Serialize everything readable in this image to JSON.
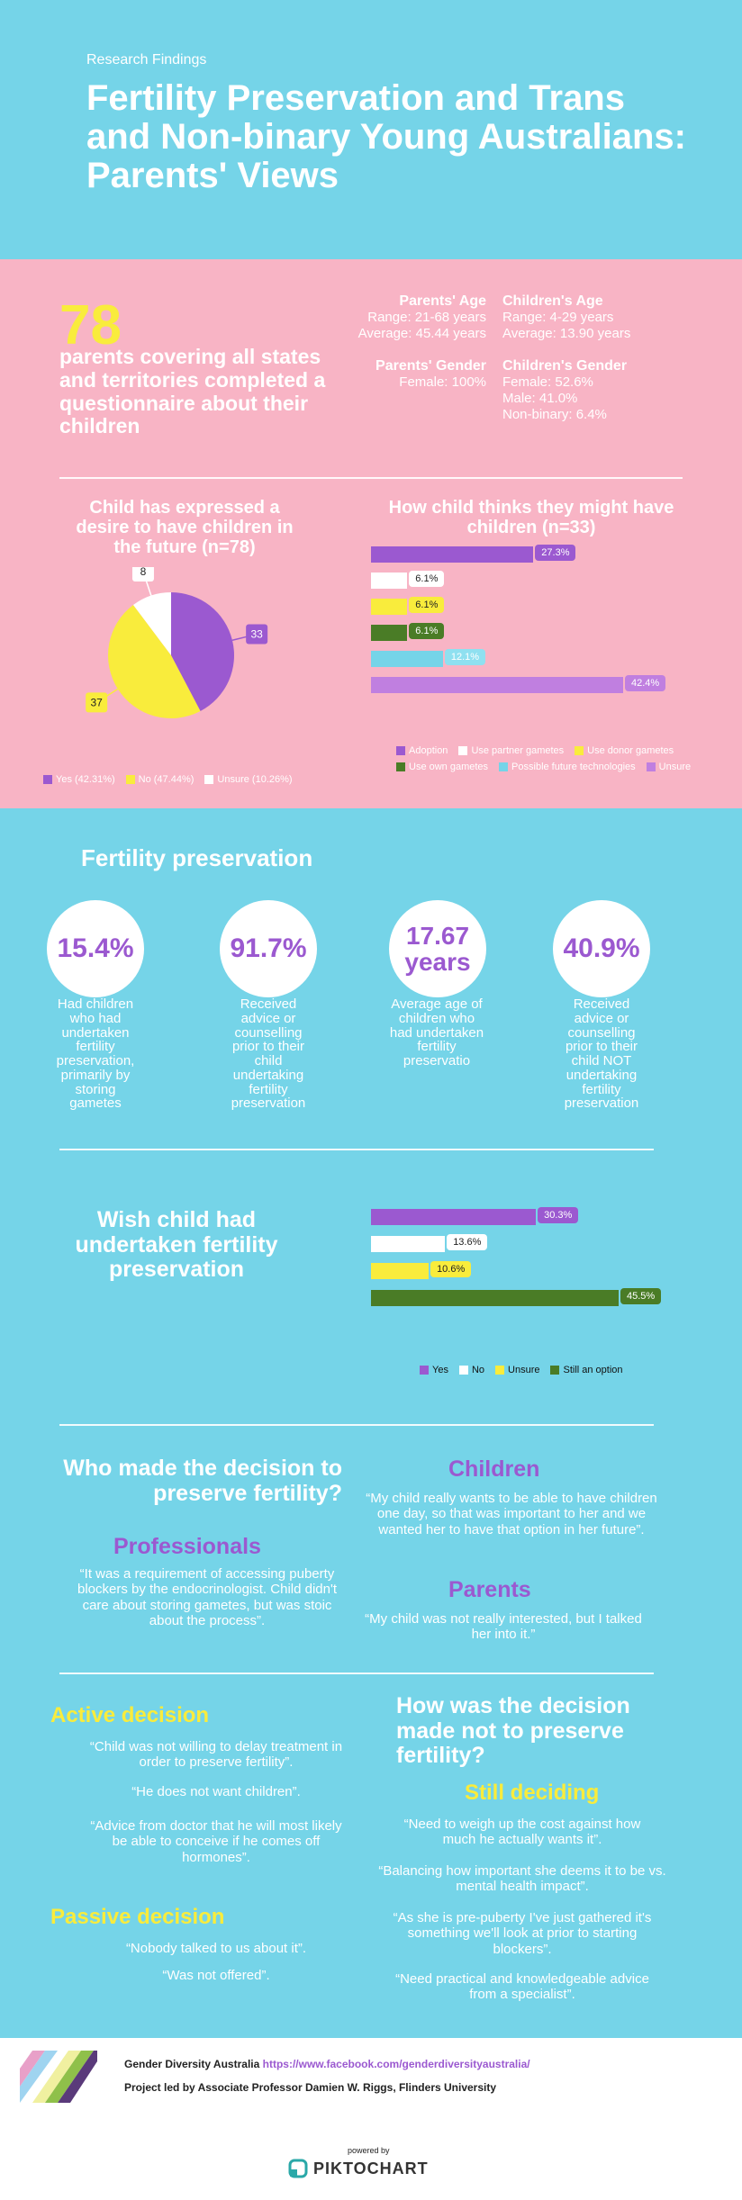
{
  "header": {
    "kicker": "Research Findings",
    "title": "Fertility Preservation and Trans and Non-binary Young Australians: Parents' Views"
  },
  "overview": {
    "count": "78",
    "count_text": "parents covering all states and territories completed a questionnaire about their children",
    "parents_age": {
      "heading": "Parents' Age",
      "range": "Range: 21-68 years",
      "average": "Average: 45.44 years"
    },
    "children_age": {
      "heading": "Children's Age",
      "range": "Range: 4-29 years",
      "average": "Average: 13.90 years"
    },
    "parents_gender": {
      "heading": "Parents' Gender",
      "female": "Female: 100%"
    },
    "children_gender": {
      "heading": "Children's Gender",
      "female": "Female: 52.6%",
      "male": "Male: 41.0%",
      "nonbinary": "Non-binary: 6.4%"
    }
  },
  "chart_data": [
    {
      "type": "pie",
      "title": "Child has expressed a desire to have children in the future (n=78)",
      "categories": [
        "Yes",
        "No",
        "Unsure"
      ],
      "values": [
        33,
        37,
        8
      ],
      "percent": [
        42.31,
        47.44,
        10.26
      ],
      "colors": [
        "#9b59d0",
        "#f9ec3c",
        "#ffffff"
      ],
      "legend": [
        "Yes (42.31%)",
        "No (47.44%)",
        "Unsure (10.26%)"
      ],
      "labels": [
        "33",
        "37",
        "8"
      ]
    },
    {
      "type": "bar",
      "title": "How child thinks they might have children (n=33)",
      "categories": [
        "Adoption",
        "Use partner gametes",
        "Use donor gametes",
        "Use own gametes",
        "Possible future technologies",
        "Unsure"
      ],
      "values": [
        27.3,
        6.1,
        6.1,
        6.1,
        12.1,
        42.4
      ],
      "labels": [
        "27.3%",
        "6.1%",
        "6.1%",
        "6.1%",
        "12.1%",
        "42.4%"
      ],
      "colors": [
        "#9b59d0",
        "#ffffff",
        "#f9ec3c",
        "#4a7c26",
        "#75d4e8",
        "#c07fe0"
      ]
    },
    {
      "type": "bar",
      "title": "Wish child had undertaken fertility preservation",
      "categories": [
        "Yes",
        "No",
        "Unsure",
        "Still an option"
      ],
      "values": [
        30.3,
        13.6,
        10.6,
        45.5
      ],
      "labels": [
        "30.3%",
        "13.6%",
        "10.6%",
        "45.5%"
      ],
      "colors": [
        "#9b59d0",
        "#ffffff",
        "#f9ec3c",
        "#4a7c26"
      ]
    }
  ],
  "fertility": {
    "title": "Fertility preservation",
    "stats": [
      {
        "value": "15.4%",
        "desc": "Had children who had undertaken fertility preservation, primarily by storing gametes"
      },
      {
        "value": "91.7%",
        "desc": "Received advice or counselling prior to their child undertaking fertility preservation"
      },
      {
        "value": "17.67 years",
        "desc": "Average age of children who had undertaken fertility preservatio"
      },
      {
        "value": "40.9%",
        "desc": "Received advice or counselling prior to their child NOT undertaking fertility preservation"
      }
    ]
  },
  "decision": {
    "title": "Who made the decision to preserve fertility?",
    "professionals_head": "Professionals",
    "professionals_quote": "“It was a requirement of accessing puberty blockers by the endocrinologist. Child didn't care about storing gametes, but was stoic about the process”.",
    "children_head": "Children",
    "children_quote": "“My child really wants to be able to have children one day, so that was important to her and we wanted her to have that option in her future”.",
    "parents_head": "Parents",
    "parents_quote": "“My child was not really interested, but I talked her into it.”"
  },
  "not_preserve": {
    "title": "How was the decision made not to preserve fertility?",
    "active_head": "Active decision",
    "active_quotes": [
      "“Child was not willing to delay treatment in order to preserve fertility”.",
      "“He does not want children”.",
      "“Advice from doctor that he will most likely be able to conceive if he comes off hormones”."
    ],
    "passive_head": "Passive decision",
    "passive_quotes": [
      "“Nobody talked to us about it”.",
      "“Was not offered”."
    ],
    "still_head": "Still deciding",
    "still_quotes": [
      "“Need to weigh up the cost against how much he actually wants it”.",
      "“Balancing how important she deems it to be vs. mental health impact”.",
      "“As she is pre-puberty I've just gathered it's something we'll look at prior to starting blockers”.",
      "“Need practical and knowledgeable advice from a specialist”."
    ]
  },
  "footer": {
    "org": "Gender Diversity Australia",
    "url": "https://www.facebook.com/genderdiversityaustralia/",
    "project": "Project led by Associate Professor Damien W. Riggs, Flinders University",
    "powered": "powered by",
    "brand": "PIKTOCHART"
  }
}
